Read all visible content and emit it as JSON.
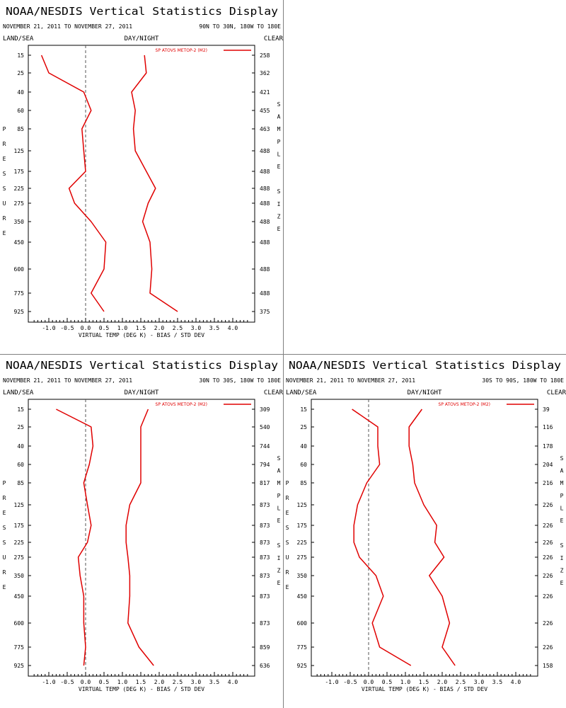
{
  "chart_data": [
    {
      "type": "line",
      "title": "NOAA/NESDIS Vertical Statistics Display",
      "date_range": "NOVEMBER 21, 2011 TO NOVEMBER 27, 2011",
      "region": "90N TO 30N, 180W TO 180E",
      "land_sea": "LAND/SEA",
      "day_night": "DAY/NIGHT",
      "clear": "CLEAR",
      "ylabel": "PRESSURE",
      "y2label": "SAMPLE SIZE",
      "xlabel": "VIRTUAL TEMP (DEG K) - BIAS / STD DEV",
      "xlim": [
        -1.5,
        4.5
      ],
      "xticks": [
        "-1.0",
        "-0.5",
        "0.0",
        "0.5",
        "1.0",
        "1.5",
        "2.0",
        "2.5",
        "3.0",
        "3.5",
        "4.0"
      ],
      "color": "#e00000",
      "legend": "SP ATOVS METOP-2 (M2)",
      "legend_position": "top-right",
      "pressure_levels": [
        "15",
        "25",
        "40",
        "60",
        "85",
        "125",
        "175",
        "225",
        "275",
        "350",
        "450",
        "600",
        "775",
        "925"
      ],
      "sample_size": [
        "258",
        "362",
        "421",
        "455",
        "463",
        "488",
        "488",
        "488",
        "488",
        "488",
        "488",
        "488",
        "488",
        "375"
      ],
      "series": [
        {
          "name": "BIAS",
          "values": [
            -1.2,
            -1.0,
            -0.05,
            0.15,
            -0.1,
            -0.05,
            0.0,
            -0.45,
            -0.3,
            0.15,
            0.55,
            0.5,
            0.15,
            0.5
          ]
        },
        {
          "name": "STD DEV",
          "values": [
            1.6,
            1.65,
            1.25,
            1.35,
            1.3,
            1.35,
            1.65,
            1.9,
            1.7,
            1.55,
            1.75,
            1.8,
            1.75,
            2.5
          ]
        }
      ]
    },
    {
      "type": "line",
      "title": "NOAA/NESDIS Vertical Statistics Display",
      "date_range": "NOVEMBER 21, 2011 TO NOVEMBER 27, 2011",
      "region": "30N TO 30S, 180W TO 180E",
      "land_sea": "LAND/SEA",
      "day_night": "DAY/NIGHT",
      "clear": "CLEAR",
      "ylabel": "PRESSURE",
      "y2label": "SAMPLE SIZE",
      "xlabel": "VIRTUAL TEMP (DEG K) - BIAS / STD DEV",
      "xlim": [
        -1.5,
        4.5
      ],
      "xticks": [
        "-1.0",
        "-0.5",
        "0.0",
        "0.5",
        "1.0",
        "1.5",
        "2.0",
        "2.5",
        "3.0",
        "3.5",
        "4.0"
      ],
      "color": "#e00000",
      "legend": "SP ATOVS METOP-2 (M2)",
      "legend_position": "top-right",
      "pressure_levels": [
        "15",
        "25",
        "40",
        "60",
        "85",
        "125",
        "175",
        "225",
        "275",
        "350",
        "450",
        "600",
        "775",
        "925"
      ],
      "sample_size": [
        "309",
        "540",
        "744",
        "794",
        "817",
        "873",
        "873",
        "873",
        "873",
        "873",
        "873",
        "873",
        "859",
        "636"
      ],
      "series": [
        {
          "name": "BIAS",
          "values": [
            -0.8,
            0.15,
            0.2,
            0.1,
            -0.05,
            0.05,
            0.15,
            0.05,
            -0.2,
            -0.15,
            -0.05,
            -0.05,
            0.0,
            -0.05
          ]
        },
        {
          "name": "STD DEV",
          "values": [
            1.7,
            1.5,
            1.5,
            1.5,
            1.5,
            1.2,
            1.1,
            1.1,
            1.15,
            1.2,
            1.2,
            1.15,
            1.45,
            1.85
          ]
        }
      ]
    },
    {
      "type": "line",
      "title": "NOAA/NESDIS Vertical Statistics Display",
      "date_range": "NOVEMBER 21, 2011 TO NOVEMBER 27, 2011",
      "region": "30S TO 90S, 180W TO 180E",
      "land_sea": "LAND/SEA",
      "day_night": "DAY/NIGHT",
      "clear": "CLEAR",
      "ylabel": "PRESSURE",
      "y2label": "SAMPLE SIZE",
      "xlabel": "VIRTUAL TEMP (DEG K) - BIAS / STD DEV",
      "xlim": [
        -1.5,
        4.5
      ],
      "xticks": [
        "-1.0",
        "-0.5",
        "0.0",
        "0.5",
        "1.0",
        "1.5",
        "2.0",
        "2.5",
        "3.0",
        "3.5",
        "4.0"
      ],
      "color": "#e00000",
      "legend": "SP ATOVS METOP-2 (M2)",
      "legend_position": "top-right",
      "pressure_levels": [
        "15",
        "25",
        "40",
        "60",
        "85",
        "125",
        "175",
        "225",
        "275",
        "350",
        "450",
        "600",
        "775",
        "925"
      ],
      "sample_size": [
        "39",
        "116",
        "178",
        "204",
        "216",
        "226",
        "226",
        "226",
        "226",
        "226",
        "226",
        "226",
        "226",
        "158"
      ],
      "series": [
        {
          "name": "BIAS",
          "values": [
            -0.45,
            0.25,
            0.25,
            0.3,
            -0.05,
            -0.3,
            -0.4,
            -0.4,
            -0.25,
            0.2,
            0.4,
            0.1,
            0.3,
            1.15
          ]
        },
        {
          "name": "STD DEV",
          "values": [
            1.45,
            1.1,
            1.1,
            1.2,
            1.25,
            1.5,
            1.85,
            1.8,
            2.05,
            1.65,
            2.0,
            2.2,
            2.0,
            2.35
          ]
        }
      ]
    }
  ]
}
